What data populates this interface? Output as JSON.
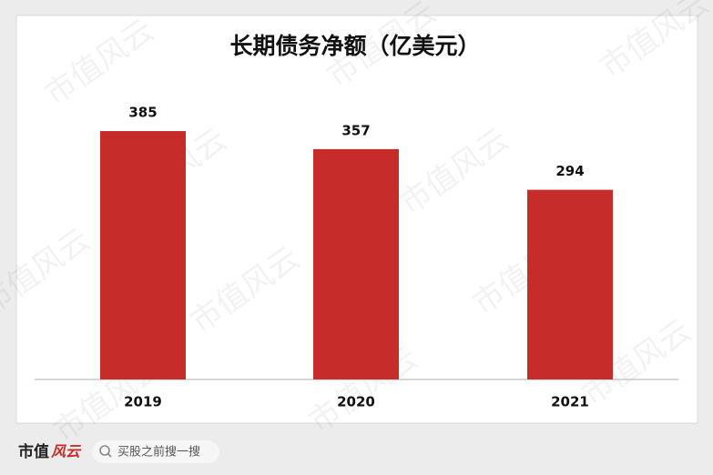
{
  "chart_data": {
    "type": "bar",
    "title": "长期债务净额（亿美元）",
    "categories": [
      "2019",
      "2020",
      "2021"
    ],
    "values": [
      385,
      357,
      294
    ],
    "color": "#c62d2a"
  },
  "watermark": "市值风云",
  "footer": {
    "logo_text": "市值",
    "logo_mark": "风云",
    "search": "买股之前搜一搜"
  }
}
